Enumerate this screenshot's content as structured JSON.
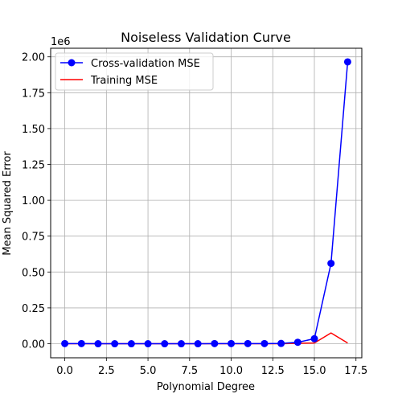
{
  "chart_data": {
    "type": "line",
    "title": "Noiseless Validation Curve",
    "xlabel": "Polynomial Degree",
    "ylabel": "Mean Squared Error",
    "y_multiplier_label": "1e6",
    "xlim": [
      -0.85,
      17.85
    ],
    "ylim": [
      -0.098,
      2.06
    ],
    "x_ticks": [
      0,
      2.5,
      5,
      7.5,
      10,
      12.5,
      15,
      17.5
    ],
    "x_tick_labels": [
      "0.0",
      "2.5",
      "5.0",
      "7.5",
      "10.0",
      "12.5",
      "15.0",
      "17.5"
    ],
    "y_ticks": [
      0,
      0.25,
      0.5,
      0.75,
      1.0,
      1.25,
      1.5,
      1.75,
      2.0
    ],
    "y_tick_labels": [
      "0.00",
      "0.25",
      "0.50",
      "0.75",
      "1.00",
      "1.25",
      "1.50",
      "1.75",
      "2.00"
    ],
    "y_unit_scale": "1e6",
    "grid": true,
    "legend_position": "top-left",
    "x": [
      0,
      1,
      2,
      3,
      4,
      5,
      6,
      7,
      8,
      9,
      10,
      11,
      12,
      13,
      14,
      15,
      16,
      17
    ],
    "series": [
      {
        "name": "Cross-validation MSE",
        "color": "#0000ff",
        "marker": "circle",
        "values": [
          0.001,
          0.001,
          0.0,
          0.0,
          0.0,
          0.0,
          0.0,
          0.0,
          0.0,
          0.001,
          0.001,
          0.001,
          0.001,
          0.002,
          0.01,
          0.035,
          0.56,
          1.965
        ]
      },
      {
        "name": "Training MSE",
        "color": "#ff0000",
        "marker": "none",
        "values": [
          0.0,
          0.0,
          0.0,
          0.0,
          0.0,
          0.0,
          0.0,
          0.0,
          0.0,
          0.0,
          0.0,
          0.0,
          0.0,
          0.0,
          0.003,
          0.005,
          0.075,
          0.005
        ]
      }
    ]
  }
}
